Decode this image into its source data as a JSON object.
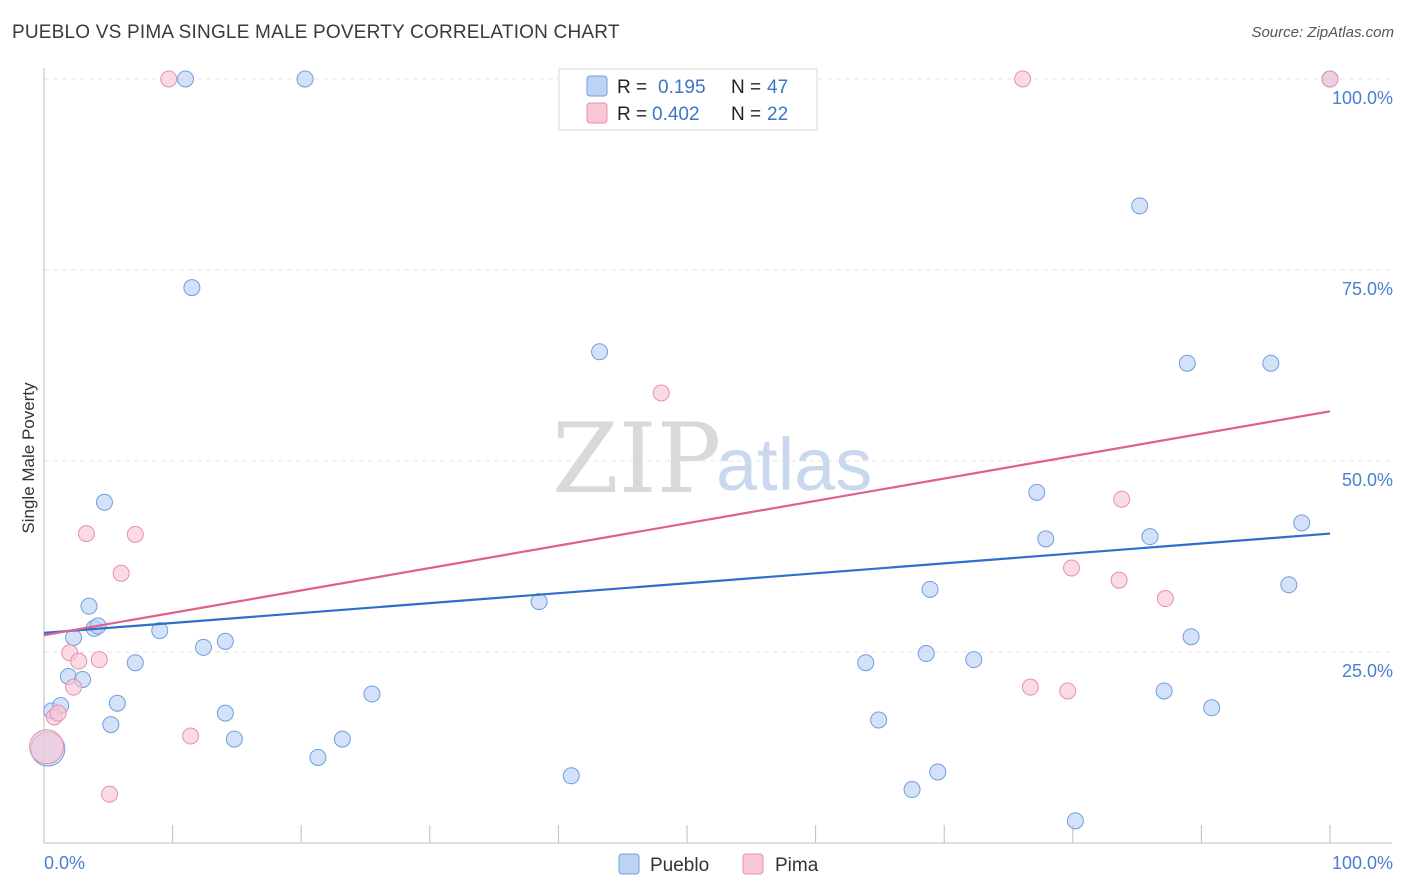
{
  "title": "PUEBLO VS PIMA SINGLE MALE POVERTY CORRELATION CHART",
  "source": "Source: ZipAtlas.com",
  "watermark": {
    "zip": "ZIP",
    "atlas": "atlas"
  },
  "colors": {
    "pueblo_fill": "#bcd3f5",
    "pueblo_stroke": "#6f9ee0",
    "pueblo_line": "#2f6fcc",
    "pima_fill": "#f8c6d6",
    "pima_stroke": "#e88fae",
    "pima_line": "#e05f8c",
    "tick_text": "#4a7fd0",
    "grid": "#e6e6e6"
  },
  "legend": {
    "rows": [
      {
        "r_label": "R =",
        "r_value": "0.195",
        "n_label": "N =",
        "n_value": "47",
        "series": "pueblo"
      },
      {
        "r_label": "R =",
        "r_value": "0.402",
        "n_label": "N =",
        "n_value": "22",
        "series": "pima"
      }
    ]
  },
  "bottom_legend": [
    {
      "label": "Pueblo",
      "series": "pueblo"
    },
    {
      "label": "Pima",
      "series": "pima"
    }
  ],
  "chart_data": {
    "type": "scatter",
    "title": "PUEBLO VS PIMA SINGLE MALE POVERTY CORRELATION CHART",
    "xlabel": "",
    "ylabel": "Single Male Poverty",
    "xlim": [
      0,
      100
    ],
    "ylim": [
      0,
      100
    ],
    "x_tick_labels": [
      "0.0%",
      "100.0%"
    ],
    "y_tick_labels": [
      "25.0%",
      "50.0%",
      "75.0%",
      "100.0%"
    ],
    "y_ticks": [
      25,
      50,
      75,
      100
    ],
    "grid": true,
    "legend_position": "top-center",
    "series": [
      {
        "name": "Pueblo",
        "trend": {
          "x": [
            0,
            100
          ],
          "y": [
            27.5,
            40.5
          ]
        },
        "points": [
          [
            0.3,
            12.3,
            "big"
          ],
          [
            0.6,
            17.3
          ],
          [
            1.3,
            18.0
          ],
          [
            1.9,
            21.8
          ],
          [
            2.3,
            26.9
          ],
          [
            3.0,
            21.4
          ],
          [
            3.5,
            31.0
          ],
          [
            3.9,
            28.1
          ],
          [
            4.2,
            28.4
          ],
          [
            4.7,
            44.6
          ],
          [
            5.2,
            15.5
          ],
          [
            5.7,
            18.3
          ],
          [
            7.1,
            23.6
          ],
          [
            9.0,
            27.8
          ],
          [
            11.0,
            100.0
          ],
          [
            11.5,
            72.7
          ],
          [
            12.4,
            25.6
          ],
          [
            14.1,
            26.4
          ],
          [
            14.1,
            17.0
          ],
          [
            14.8,
            13.6
          ],
          [
            20.3,
            100.0
          ],
          [
            21.3,
            11.2
          ],
          [
            23.2,
            13.6
          ],
          [
            25.5,
            19.5
          ],
          [
            38.5,
            31.6
          ],
          [
            41.0,
            8.8
          ],
          [
            43.2,
            64.3
          ],
          [
            63.9,
            23.6
          ],
          [
            64.9,
            16.1
          ],
          [
            67.5,
            7.0
          ],
          [
            68.6,
            24.8
          ],
          [
            68.9,
            33.2
          ],
          [
            69.5,
            9.3
          ],
          [
            72.3,
            24.0
          ],
          [
            77.2,
            45.9
          ],
          [
            77.9,
            39.8
          ],
          [
            80.2,
            2.9
          ],
          [
            85.2,
            83.4
          ],
          [
            86.0,
            40.1
          ],
          [
            87.1,
            19.9
          ],
          [
            88.9,
            62.8
          ],
          [
            89.2,
            27.0
          ],
          [
            90.8,
            17.7
          ],
          [
            95.4,
            62.8
          ],
          [
            96.8,
            33.8
          ],
          [
            97.8,
            41.9
          ],
          [
            100.0,
            100.0
          ]
        ]
      },
      {
        "name": "Pima",
        "trend": {
          "x": [
            0,
            100
          ],
          "y": [
            27.2,
            56.5
          ]
        },
        "points": [
          [
            0.2,
            12.6,
            "big"
          ],
          [
            0.8,
            16.5
          ],
          [
            1.1,
            17.0
          ],
          [
            2.0,
            24.9
          ],
          [
            2.3,
            20.4
          ],
          [
            2.7,
            23.8
          ],
          [
            3.3,
            40.5
          ],
          [
            4.3,
            24.0
          ],
          [
            5.1,
            6.4
          ],
          [
            6.0,
            35.3
          ],
          [
            7.1,
            40.4
          ],
          [
            9.7,
            100.0
          ],
          [
            11.4,
            14.0
          ],
          [
            48.0,
            58.9
          ],
          [
            76.1,
            100.0
          ],
          [
            76.7,
            20.4
          ],
          [
            79.6,
            19.9
          ],
          [
            79.9,
            36.0
          ],
          [
            83.6,
            34.4
          ],
          [
            83.8,
            45.0
          ],
          [
            87.2,
            32.0
          ],
          [
            100.0,
            100.0
          ]
        ]
      }
    ]
  }
}
